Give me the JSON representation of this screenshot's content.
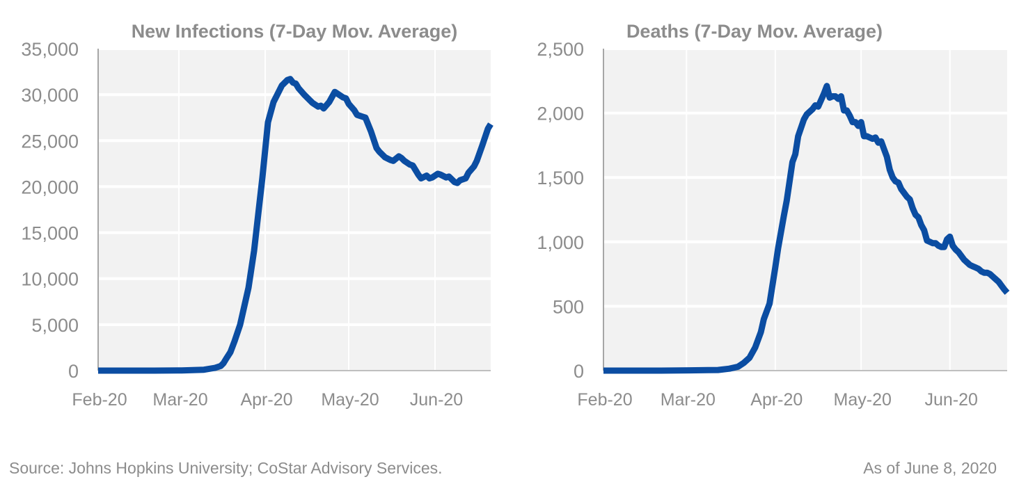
{
  "chart_data": [
    {
      "type": "line",
      "title": "New Infections (7-Day Mov. Average)",
      "xlabel": "",
      "ylabel": "",
      "x_unit": "days since Feb 1, 2020",
      "xlim": [
        0,
        141
      ],
      "ylim": [
        0,
        35000
      ],
      "y_ticks": [
        0,
        5000,
        10000,
        15000,
        20000,
        25000,
        30000,
        35000
      ],
      "y_tick_labels": [
        "0",
        "5,000",
        "10,000",
        "15,000",
        "20,000",
        "25,000",
        "30,000",
        "35,000"
      ],
      "x_ticks": [
        0,
        29,
        60,
        90,
        121
      ],
      "x_tick_labels": [
        "Feb-20",
        "Mar-20",
        "Apr-20",
        "May-20",
        "Jun-20"
      ],
      "grid": true,
      "legend": "none",
      "line_color": "#0B4DA2",
      "series": [
        {
          "name": "New Infections (7-Day Mov. Average)",
          "x": [
            0,
            10,
            20,
            30,
            38,
            42,
            44,
            45,
            46,
            47.5,
            49,
            51,
            52.5,
            54,
            56,
            57.5,
            59,
            61,
            63,
            64,
            66,
            68,
            69,
            70,
            71,
            72,
            74,
            76,
            77,
            79,
            80,
            81,
            83,
            85,
            86,
            88,
            89,
            90,
            92,
            93,
            95,
            96,
            98,
            100,
            101,
            103,
            105,
            106,
            108,
            109,
            110,
            112,
            113,
            115,
            116,
            118,
            119,
            120,
            122,
            123,
            125,
            126,
            128,
            129,
            130,
            132,
            133,
            135,
            136,
            138,
            140,
            141
          ],
          "values": [
            0,
            0,
            0,
            20,
            100,
            300,
            500,
            800,
            1300,
            2000,
            3200,
            5000,
            7000,
            9000,
            13000,
            17000,
            21000,
            27000,
            29200,
            29800,
            31000,
            31600,
            31700,
            31300,
            31200,
            30700,
            30000,
            29400,
            29100,
            28700,
            28800,
            28500,
            29200,
            30300,
            30100,
            29700,
            29600,
            29000,
            28300,
            27800,
            27600,
            27500,
            26000,
            24200,
            23800,
            23200,
            22900,
            22800,
            23300,
            23100,
            22800,
            22400,
            22300,
            21300,
            20900,
            21200,
            20900,
            21000,
            21400,
            21300,
            21000,
            21100,
            20500,
            20400,
            20700,
            20900,
            21500,
            22200,
            22800,
            24500,
            26300,
            26800
          ]
        }
      ]
    },
    {
      "type": "line",
      "title": "Deaths (7-Day Mov. Average)",
      "xlabel": "",
      "ylabel": "",
      "x_unit": "days since Feb 1, 2020",
      "xlim": [
        0,
        141
      ],
      "ylim": [
        0,
        2500
      ],
      "y_ticks": [
        0,
        500,
        1000,
        1500,
        2000,
        2500
      ],
      "y_tick_labels": [
        "0",
        "500",
        "1,000",
        "1,500",
        "2,000",
        "2,500"
      ],
      "x_ticks": [
        0,
        29,
        60,
        90,
        121
      ],
      "x_tick_labels": [
        "Feb-20",
        "Mar-20",
        "Apr-20",
        "May-20",
        "Jun-20"
      ],
      "grid": true,
      "legend": "none",
      "line_color": "#0B4DA2",
      "series": [
        {
          "name": "Deaths (7-Day Mov. Average)",
          "x": [
            0,
            10,
            20,
            30,
            40,
            44,
            47,
            49,
            51,
            53,
            55,
            56,
            58,
            60,
            61,
            63,
            64,
            66,
            67,
            68,
            70,
            71,
            73,
            74,
            75,
            76,
            77,
            78,
            79,
            80,
            81,
            82,
            83,
            84,
            85,
            86,
            87,
            88,
            89,
            90,
            91,
            92,
            93,
            94,
            95,
            96,
            97,
            98,
            99,
            100,
            101,
            102,
            103,
            104,
            105,
            106,
            107,
            108,
            109,
            110,
            111,
            112,
            113,
            114,
            115,
            116,
            117,
            118,
            119,
            120,
            121,
            122,
            123,
            124,
            125,
            126,
            127,
            128,
            129,
            130,
            131,
            132,
            133,
            134,
            135,
            136,
            137,
            138,
            139,
            140,
            141
          ],
          "values": [
            0,
            0,
            0,
            2,
            5,
            15,
            30,
            60,
            100,
            180,
            300,
            400,
            520,
            800,
            950,
            1200,
            1320,
            1620,
            1680,
            1820,
            1950,
            1990,
            2030,
            2060,
            2050,
            2100,
            2150,
            2210,
            2120,
            2130,
            2130,
            2110,
            2130,
            2020,
            2020,
            1980,
            1930,
            1930,
            1900,
            1930,
            1820,
            1820,
            1810,
            1800,
            1810,
            1770,
            1780,
            1720,
            1660,
            1560,
            1500,
            1470,
            1460,
            1410,
            1380,
            1350,
            1330,
            1260,
            1210,
            1190,
            1130,
            1090,
            1010,
            1000,
            990,
            990,
            970,
            960,
            960,
            1020,
            1040,
            970,
            940,
            920,
            890,
            860,
            840,
            820,
            810,
            800,
            790,
            770,
            760,
            760,
            750,
            730,
            710,
            690,
            660,
            630,
            605
          ]
        }
      ]
    }
  ],
  "footer": {
    "source": "Source: Johns Hopkins University; CoStar Advisory Services.",
    "as_of": "As of June 8, 2020"
  }
}
